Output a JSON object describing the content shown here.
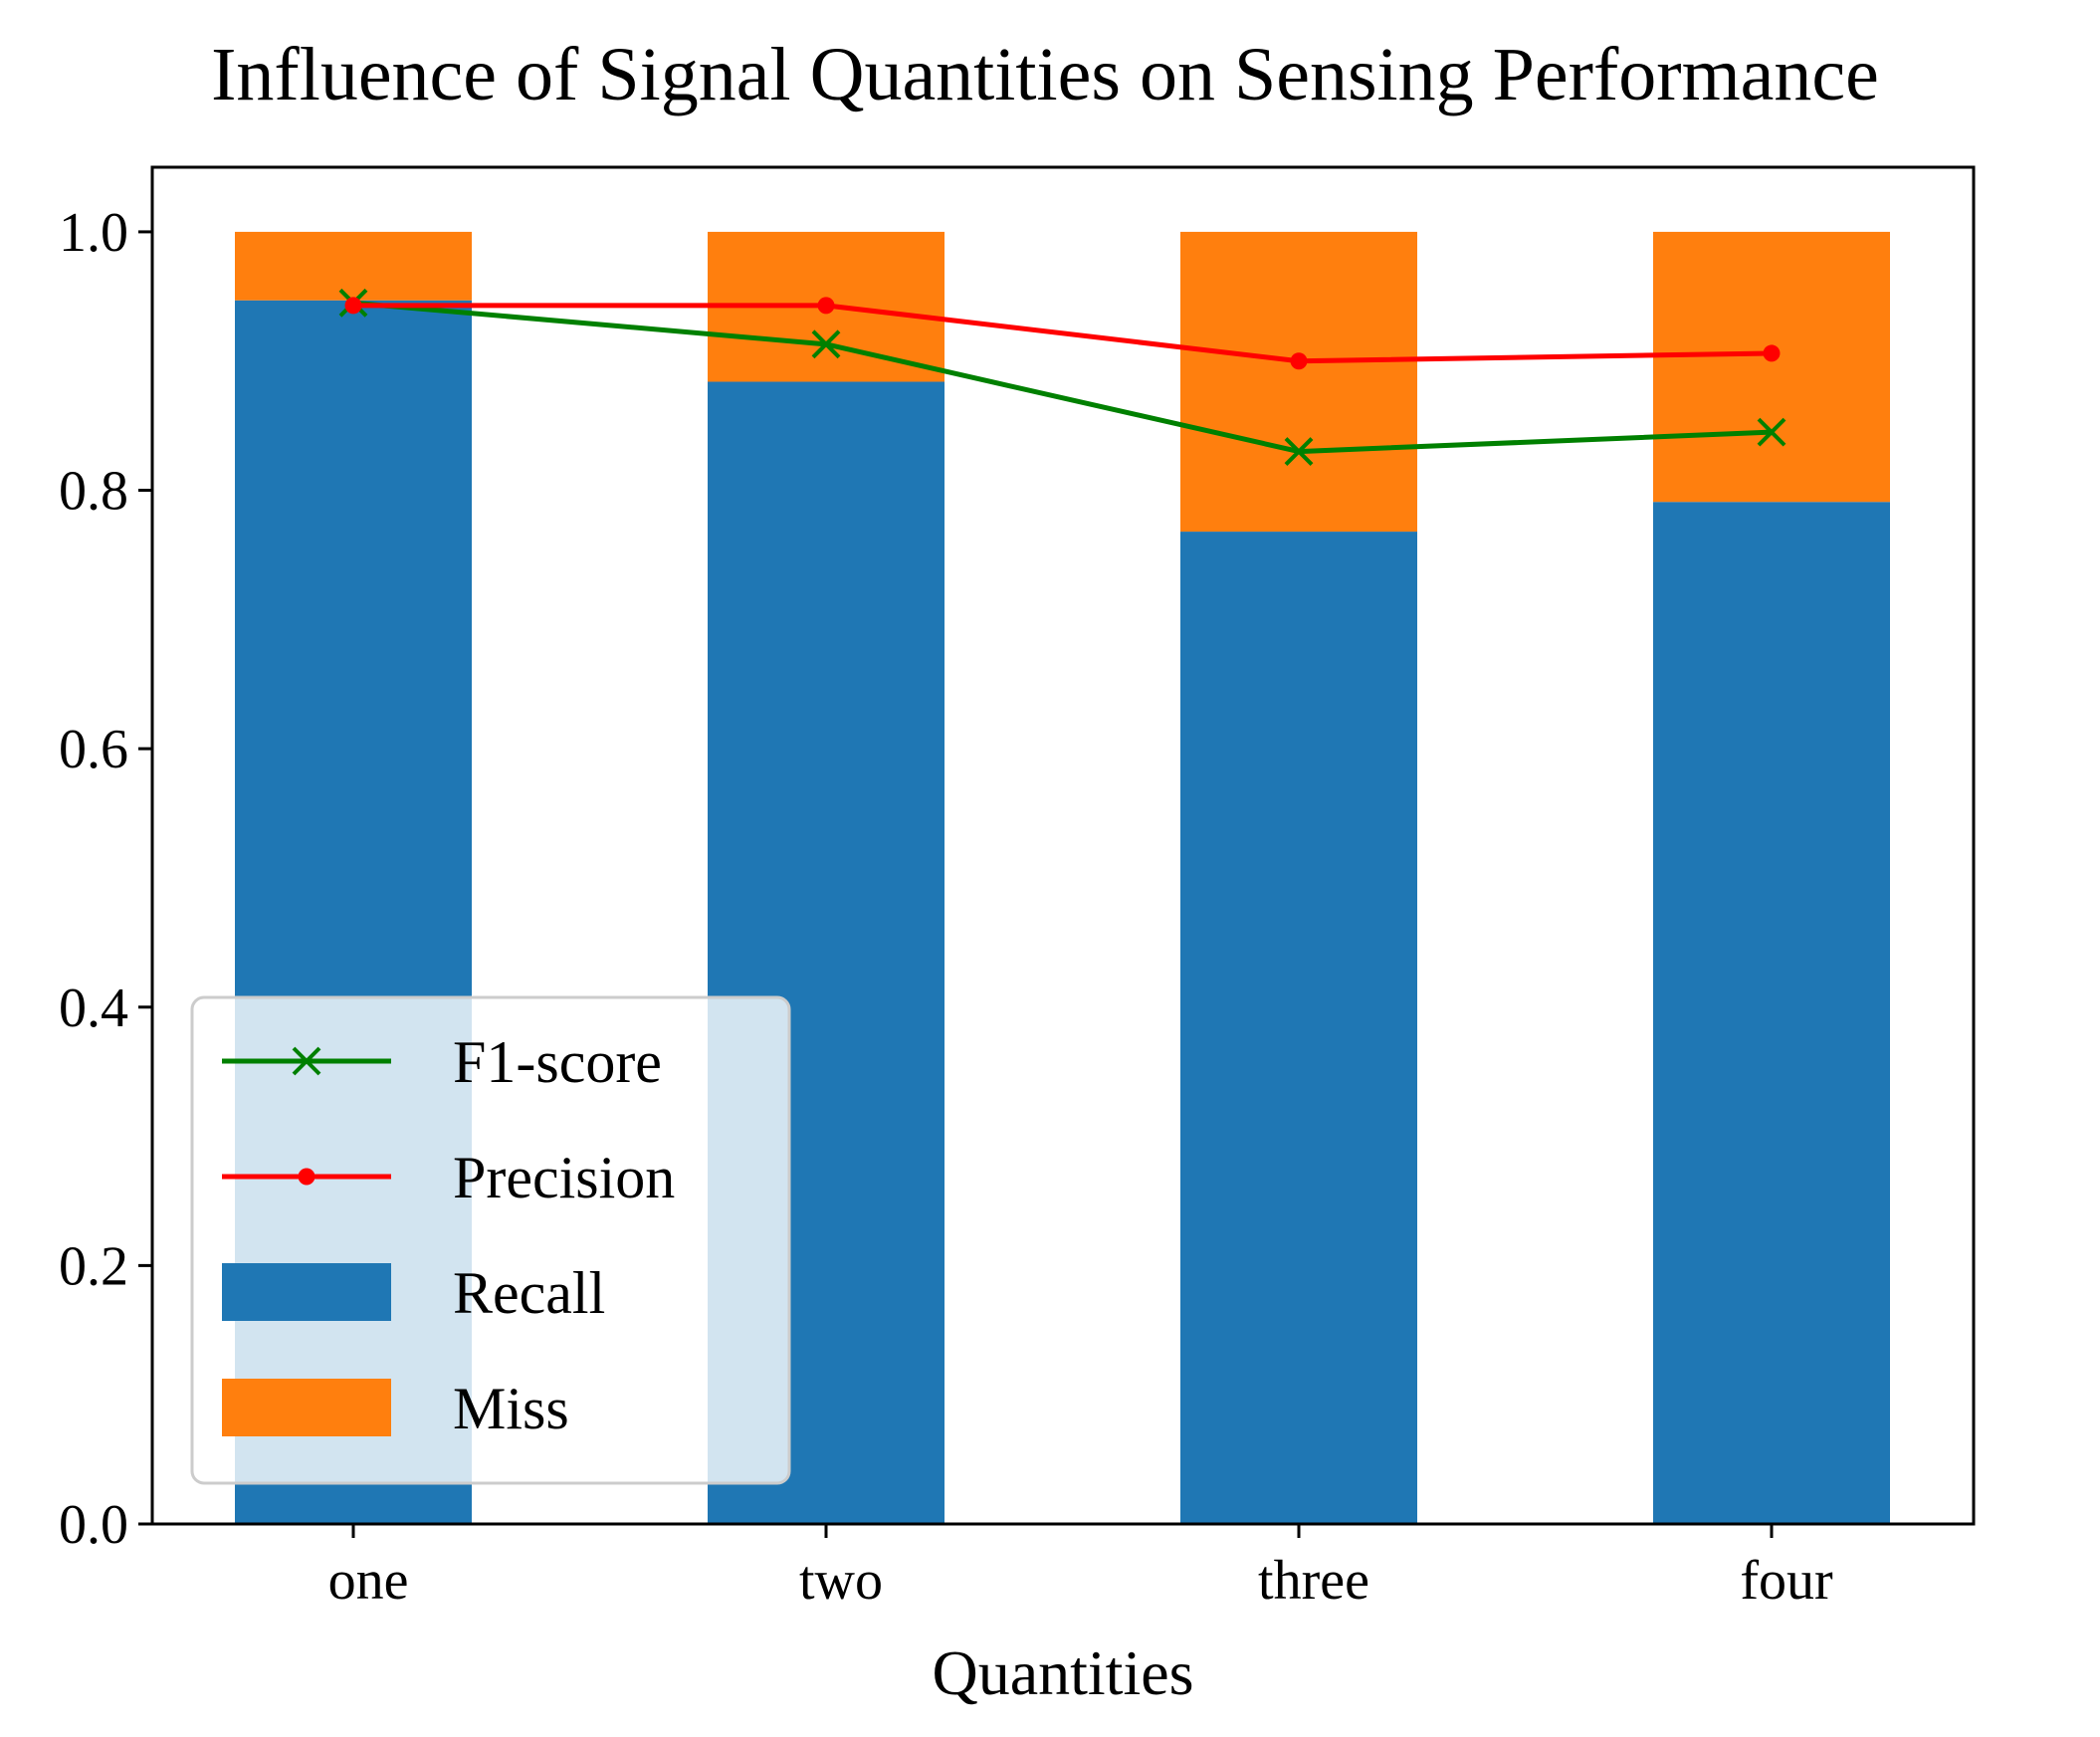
{
  "chart_data": {
    "type": "bar",
    "title": "Influence of  Signal Quantities on Sensing Performance",
    "xlabel": "Quantities",
    "ylabel": "",
    "categories": [
      "one",
      "two",
      "three",
      "four"
    ],
    "ylim": [
      0,
      1.05
    ],
    "yticks": [
      0.0,
      0.2,
      0.4,
      0.6,
      0.8,
      1.0
    ],
    "ytick_labels": [
      "0.0",
      "0.2",
      "0.4",
      "0.6",
      "0.8",
      "1.0"
    ],
    "legend_position": "lower-left",
    "grid": false,
    "series": [
      {
        "name": "F1-score",
        "kind": "line",
        "marker": "x",
        "color": "#008000",
        "values": [
          0.945,
          0.913,
          0.83,
          0.845
        ]
      },
      {
        "name": "Precision",
        "kind": "line",
        "marker": "dot",
        "color": "#ff0000",
        "values": [
          0.943,
          0.943,
          0.9,
          0.906
        ]
      },
      {
        "name": "Recall",
        "kind": "bar",
        "color": "#1f77b4",
        "values": [
          0.947,
          0.884,
          0.768,
          0.791
        ]
      },
      {
        "name": "Miss",
        "kind": "bar-stacked",
        "color": "#ff7f0e",
        "values": [
          0.053,
          0.116,
          0.232,
          0.209
        ]
      }
    ]
  }
}
